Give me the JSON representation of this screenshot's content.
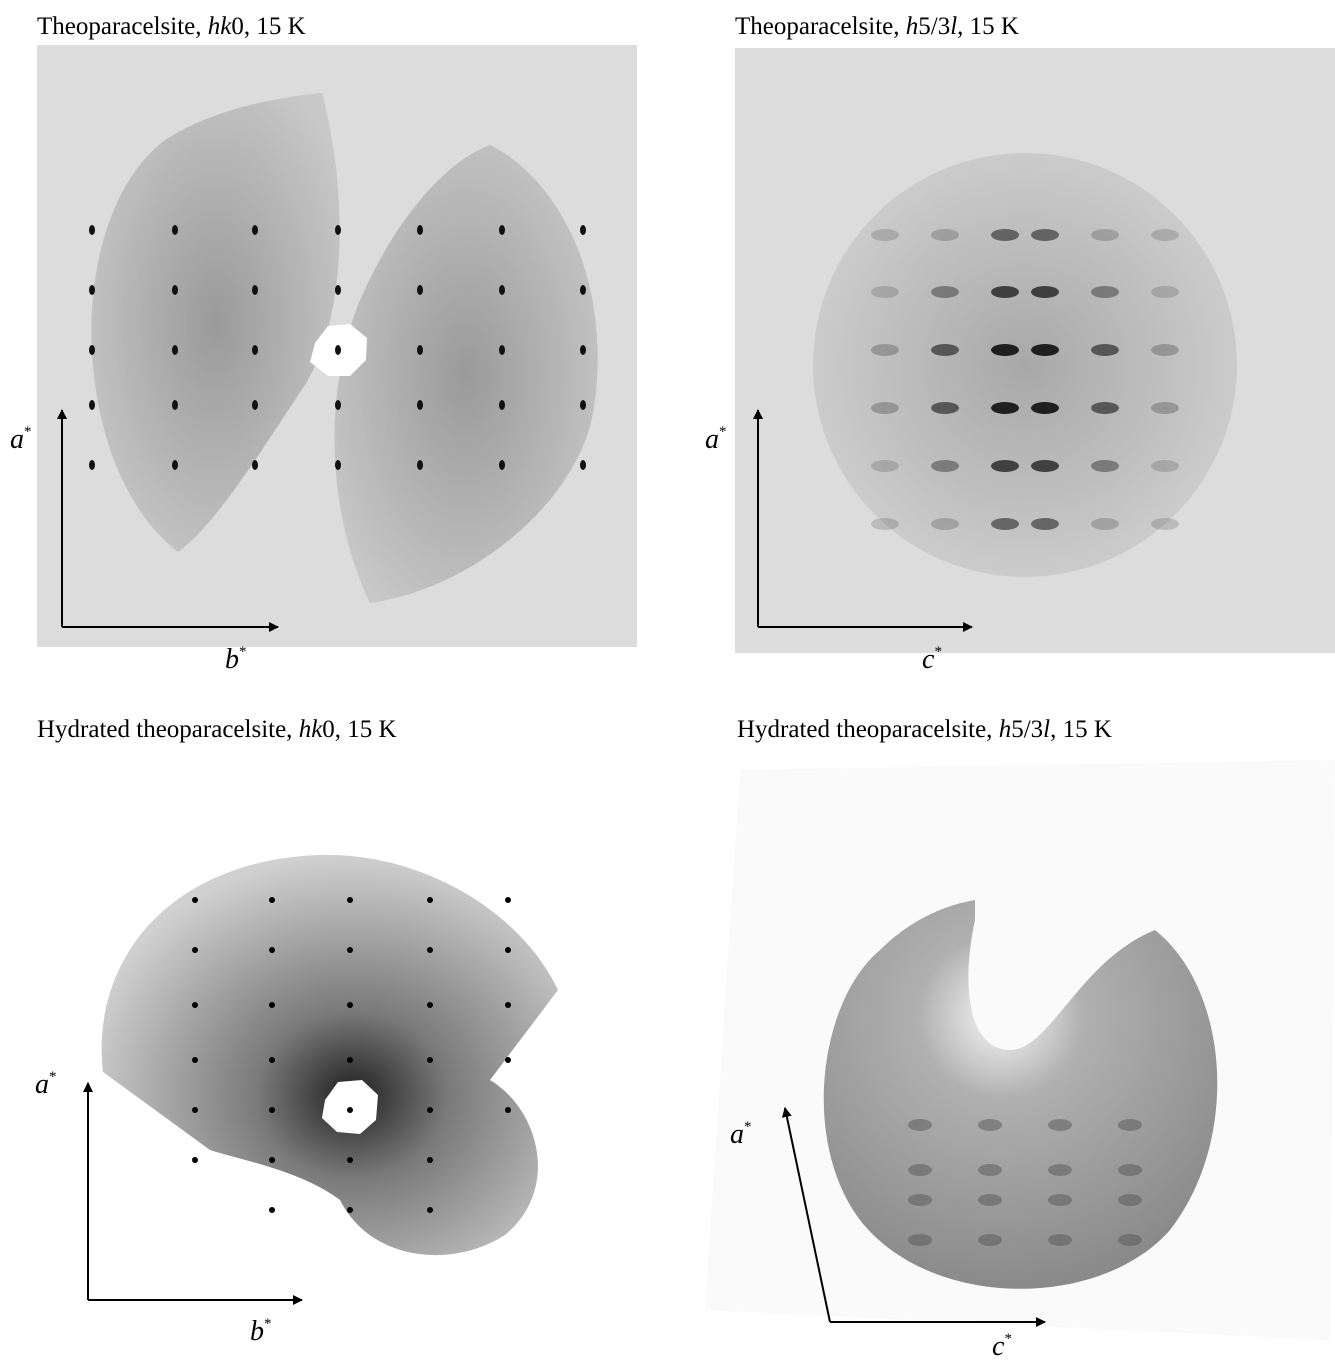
{
  "panels": [
    {
      "title": [
        "Theoparacelsite, ",
        "hk",
        "0, 15 K"
      ],
      "vertical_axis": {
        "base": "a",
        "sup": "*"
      },
      "horizontal_axis": {
        "base": "b",
        "sup": "*"
      }
    },
    {
      "title": [
        "Theoparacelsite, ",
        "h",
        "5/3",
        "l",
        ", 15 K"
      ],
      "vertical_axis": {
        "base": "a",
        "sup": "*"
      },
      "horizontal_axis": {
        "base": "c",
        "sup": "*"
      }
    },
    {
      "title": [
        "Hydrated theoparacelsite, ",
        "hk",
        "0, 15 K"
      ],
      "vertical_axis": {
        "base": "a",
        "sup": "*"
      },
      "horizontal_axis": {
        "base": "b",
        "sup": "*"
      }
    },
    {
      "title": [
        "Hydrated theoparacelsite, ",
        "h",
        "5/3",
        "l",
        ", 15 K"
      ],
      "vertical_axis": {
        "base": "a",
        "sup": "*"
      },
      "horizontal_axis": {
        "base": "c",
        "sup": "*"
      }
    }
  ]
}
